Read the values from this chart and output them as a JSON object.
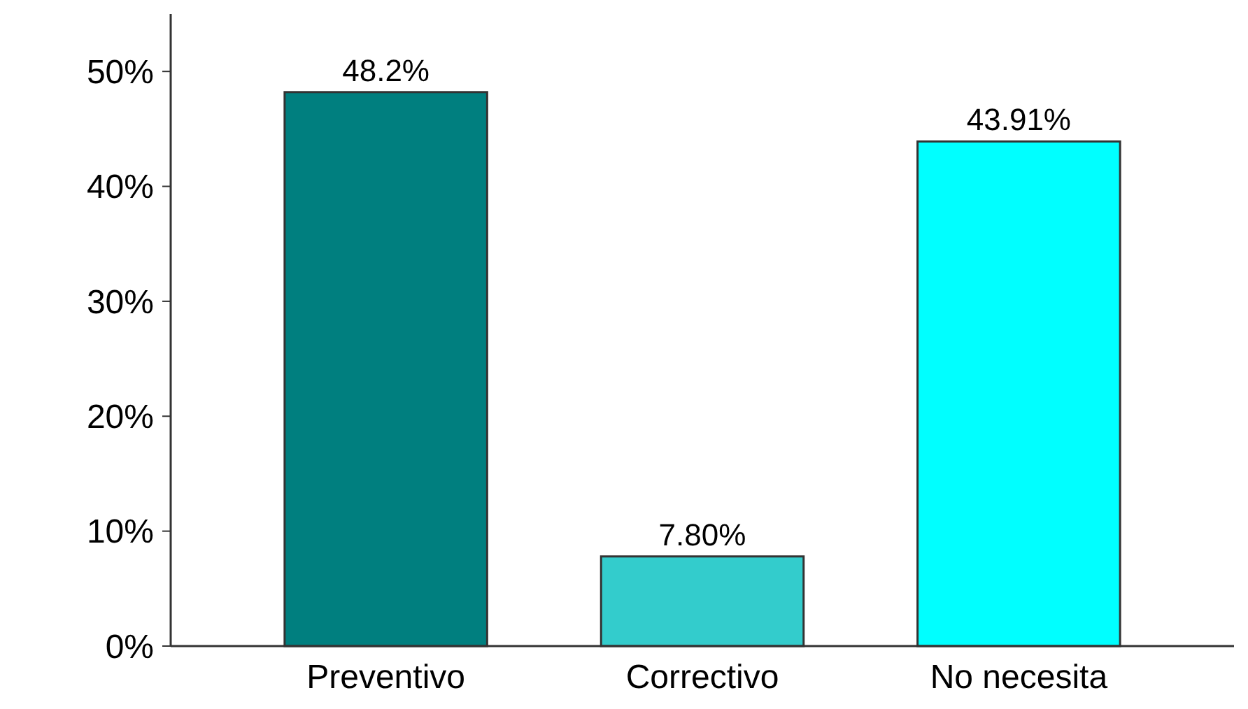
{
  "chart_data": {
    "type": "bar",
    "categories": [
      "Preventivo",
      "Correctivo",
      "No necesita"
    ],
    "values": [
      48.2,
      7.8,
      43.91
    ],
    "colors": [
      "#007f7f",
      "#33cccc",
      "#00ffff"
    ],
    "value_labels": [
      "48.2%",
      "7.80%",
      "43.91%"
    ],
    "ylim": [
      0,
      55
    ],
    "yticks": [
      {
        "value": 0,
        "label": "0%"
      },
      {
        "value": 10,
        "label": "10%"
      },
      {
        "value": 20,
        "label": "20%"
      },
      {
        "value": 30,
        "label": "30%"
      },
      {
        "value": 40,
        "label": "40%"
      },
      {
        "value": 50,
        "label": "50%"
      }
    ],
    "grid": false
  }
}
